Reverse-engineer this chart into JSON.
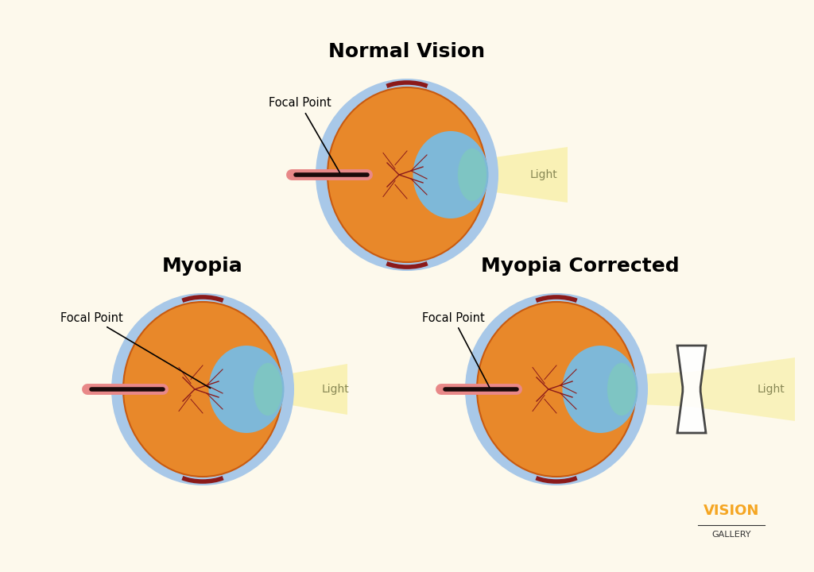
{
  "background_color": "#fdf9ec",
  "title_normal": "Normal Vision",
  "title_myopia": "Myopia",
  "title_corrected": "Myopia Corrected",
  "label_focal": "Focal Point",
  "label_light": "Light",
  "title_fontsize": 18,
  "label_fontsize": 11,
  "logo_vision": "VISION",
  "logo_gallery": "GALLERY",
  "colors": {
    "eye_orange": "#E8882A",
    "eye_dark_orange": "#C85A10",
    "eye_blue_outer": "#A8C8E8",
    "eye_blue_inner": "#7EB8D8",
    "cornea": "#7EC8C0",
    "nerve": "#8B1A1A",
    "nerve_line": "#1A0A0A",
    "eyelid_red": "#C04040",
    "eyelid_pink": "#E88888",
    "light_yellow": "#F8F0A8",
    "light_beam": "#F0E060",
    "dark_red_arc": "#8B1A1A",
    "lens_stroke": "#333333",
    "logo_orange": "#F5A623",
    "logo_dark": "#333333"
  }
}
